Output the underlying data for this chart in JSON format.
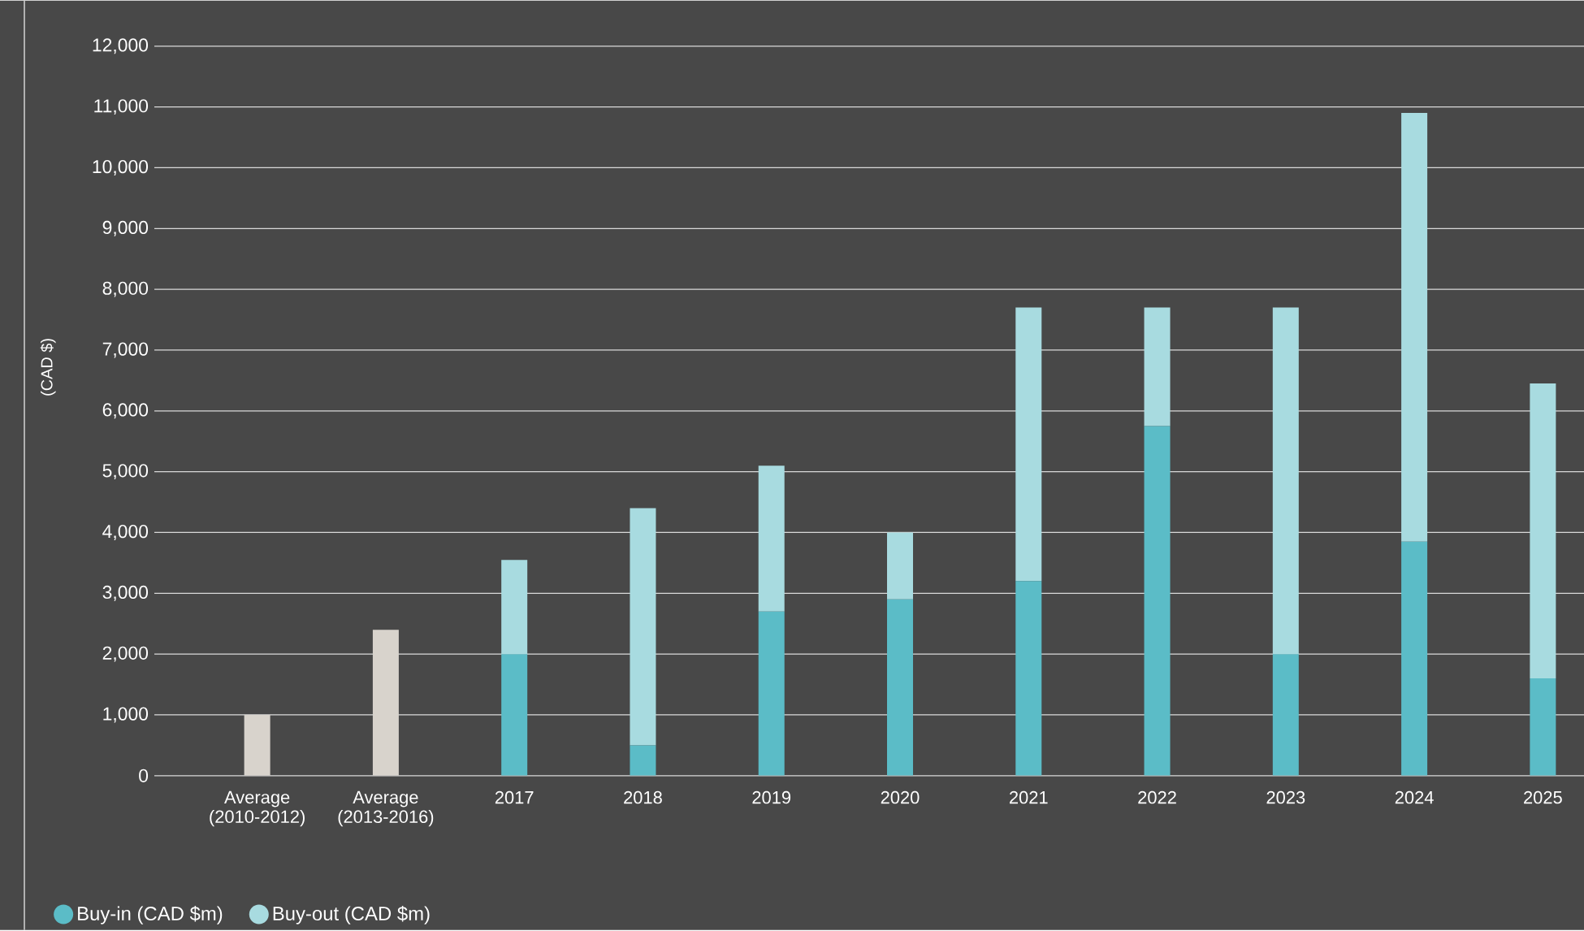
{
  "chart_data": {
    "type": "bar",
    "stacked": true,
    "ylabel": "(CAD $)",
    "categories": [
      "Average (2010-2012)",
      "Average (2013-2016)",
      "2017",
      "2018",
      "2019",
      "2020",
      "2021",
      "2022",
      "2023",
      "2024",
      "2025"
    ],
    "series": [
      {
        "color": "#d8d3cc",
        "values": [
          1000,
          2400,
          null,
          null,
          null,
          null,
          null,
          null,
          null,
          null,
          null
        ]
      },
      {
        "name": "Buy-in (CAD $m)",
        "color": "#5bbcc7",
        "values": [
          null,
          null,
          2000,
          500,
          2700,
          2900,
          3200,
          5750,
          2000,
          3850,
          1600
        ]
      },
      {
        "name": "Buy-out (CAD $m)",
        "color": "#a8dbe0",
        "values": [
          null,
          null,
          1550,
          3900,
          2400,
          1100,
          4500,
          1950,
          5700,
          7050,
          4850
        ]
      }
    ],
    "ylim": [
      0,
      12000
    ],
    "yticks": [
      0,
      {
        "value": 1000,
        "label": "1,000"
      },
      {
        "value": 2000,
        "label": "2,000"
      },
      {
        "value": 3000,
        "label": "3,000"
      },
      {
        "value": 4000,
        "label": "4,000"
      },
      {
        "value": 5000,
        "label": "5,000"
      },
      {
        "value": 6000,
        "label": "6,000"
      },
      {
        "value": 7000,
        "label": "7,000"
      },
      {
        "value": 8000,
        "label": "8,000"
      },
      {
        "value": 9000,
        "label": "9,000"
      },
      {
        "value": 10000,
        "label": "10,000"
      },
      {
        "value": 11000,
        "label": "11,000"
      },
      {
        "value": 12000,
        "label": "12,000"
      }
    ],
    "grid": "y",
    "legend": "bottom left"
  }
}
